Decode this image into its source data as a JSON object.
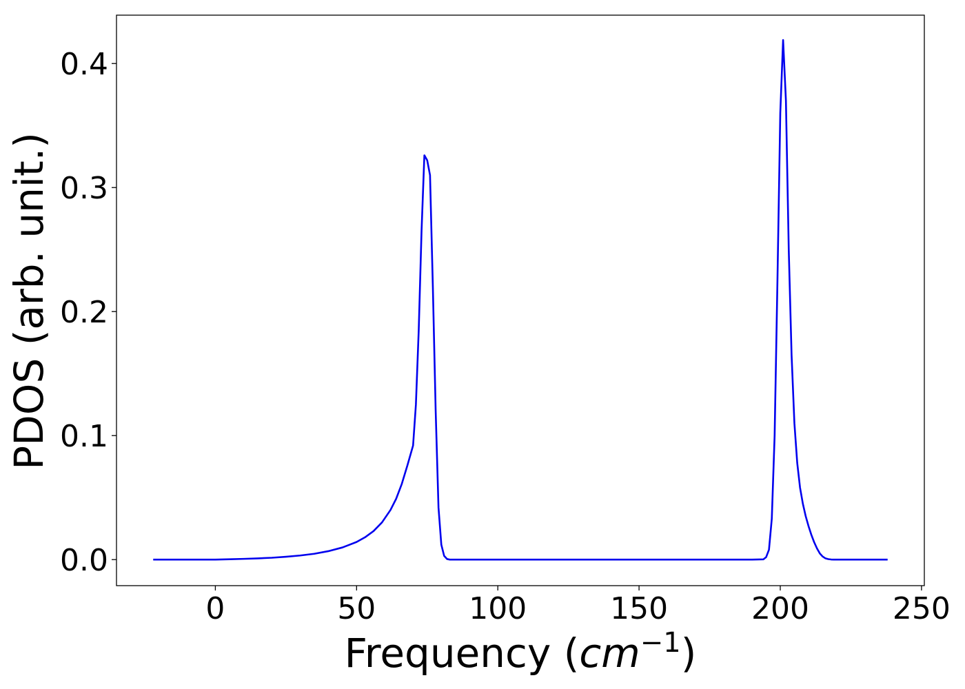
{
  "chart_data": {
    "type": "line",
    "title": "",
    "xlabel": {
      "prefix": "Frequency (",
      "math_base": "cm",
      "math_exp": "−1",
      "suffix": ")"
    },
    "ylabel": "PDOS (arb. unit.)",
    "xlim": [
      -35,
      251
    ],
    "ylim": [
      -0.021,
      0.439
    ],
    "xticks": [
      0,
      50,
      100,
      150,
      200,
      250
    ],
    "xtick_labels": [
      "0",
      "50",
      "100",
      "150",
      "200",
      "250"
    ],
    "yticks": [
      0.0,
      0.1,
      0.2,
      0.3,
      0.4
    ],
    "ytick_labels": [
      "0.0",
      "0.1",
      "0.2",
      "0.3",
      "0.4"
    ],
    "grid": false,
    "legend": "none",
    "series": [
      {
        "color": "#0000ee",
        "x": [
          -22,
          0,
          5,
          10,
          15,
          20,
          25,
          30,
          35,
          40,
          45,
          50,
          53,
          56,
          59,
          62,
          64,
          66,
          68,
          70,
          71,
          72,
          73,
          74,
          75,
          76,
          77,
          78,
          79,
          80,
          81,
          82,
          83,
          84,
          85,
          87,
          95,
          150,
          190,
          194,
          195,
          196,
          197,
          198,
          199,
          200,
          201,
          202,
          203,
          204,
          205,
          206,
          207,
          208,
          209,
          210,
          211,
          212,
          213,
          214,
          215,
          216,
          217,
          218,
          219,
          220,
          221,
          222,
          225,
          238
        ],
        "y": [
          0.0,
          0.0,
          0.0003,
          0.0006,
          0.001,
          0.0015,
          0.0023,
          0.0033,
          0.0047,
          0.0068,
          0.0098,
          0.0142,
          0.018,
          0.023,
          0.03,
          0.04,
          0.049,
          0.061,
          0.076,
          0.092,
          0.125,
          0.185,
          0.265,
          0.326,
          0.322,
          0.31,
          0.22,
          0.12,
          0.042,
          0.012,
          0.003,
          0.0005,
          0.0,
          0.0,
          0.0,
          0.0,
          0.0,
          0.0,
          0.0,
          0.0002,
          0.002,
          0.008,
          0.033,
          0.1,
          0.225,
          0.36,
          0.419,
          0.37,
          0.25,
          0.165,
          0.11,
          0.078,
          0.058,
          0.045,
          0.035,
          0.027,
          0.02,
          0.014,
          0.009,
          0.005,
          0.0025,
          0.001,
          0.0004,
          0.0001,
          0.0,
          0.0,
          0.0,
          0.0,
          0.0,
          0.0
        ]
      }
    ]
  }
}
